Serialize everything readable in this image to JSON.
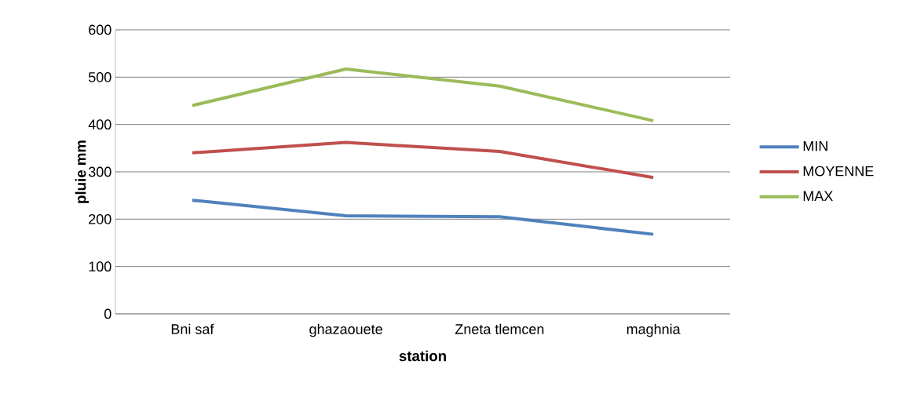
{
  "chart_data": {
    "type": "line",
    "xlabel": "station",
    "ylabel": "pluie mm",
    "categories": [
      "Bni saf",
      "ghazaouete",
      "Zneta tlemcen",
      "maghnia"
    ],
    "series": [
      {
        "name": "MIN",
        "color": "#4f81bd",
        "values": [
          240,
          207,
          205,
          168
        ]
      },
      {
        "name": "MOYENNE",
        "color": "#c0504d",
        "values": [
          340,
          362,
          343,
          288
        ]
      },
      {
        "name": "MAX",
        "color": "#9bbb59",
        "values": [
          440,
          517,
          481,
          408
        ]
      }
    ],
    "ylim": [
      0,
      600
    ],
    "yticks": [
      0,
      100,
      200,
      300,
      400,
      500,
      600
    ],
    "grid": "y",
    "legend": "right",
    "marker": "none",
    "line_style": "solid"
  }
}
